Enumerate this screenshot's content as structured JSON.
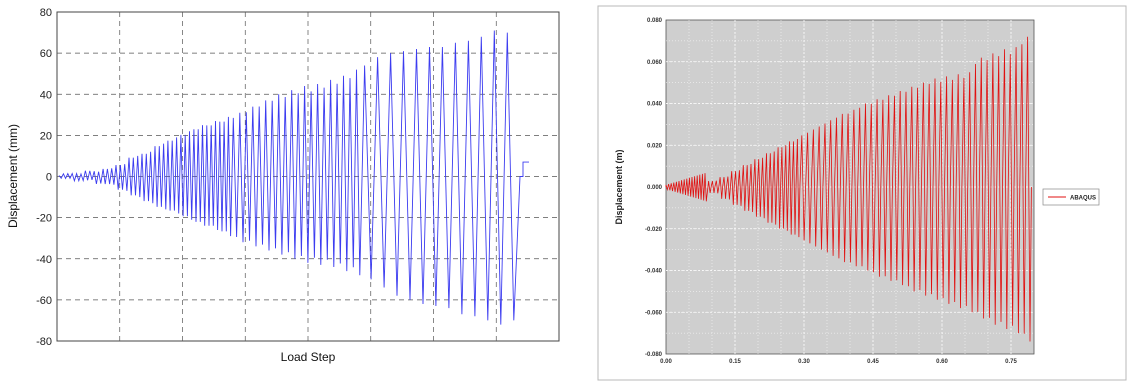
{
  "chart_data": [
    {
      "type": "line",
      "title": "",
      "xlabel": "Load Step",
      "ylabel": "Displacement (mm)",
      "ylim": [
        -80,
        80
      ],
      "y_ticks": [
        "80",
        "60",
        "40",
        "20",
        "0",
        "-20",
        "-40",
        "-60",
        "-80"
      ],
      "x_ticks": [],
      "grid": true,
      "series": [
        {
          "color": "#3c3cf0",
          "description": "cyclic displacement history with growing amplitude",
          "peaks_pos": [
            4,
            6,
            10,
            12,
            16,
            19,
            22,
            25,
            27,
            29,
            31,
            34,
            37,
            40,
            42,
            44,
            45,
            47,
            49,
            52,
            54,
            58,
            60,
            61,
            62,
            63,
            63,
            65,
            66,
            68,
            71,
            70
          ],
          "peaks_neg": [
            -4,
            -7,
            -10,
            -13,
            -16,
            -18,
            -21,
            -24,
            -26,
            -29,
            -32,
            -34,
            -36,
            -38,
            -40,
            -42,
            -43,
            -44,
            -46,
            -48,
            -50,
            -54,
            -58,
            -60,
            -62,
            -63,
            -64,
            -67,
            -68,
            -70,
            -72,
            -70
          ],
          "end_value": 7
        }
      ]
    },
    {
      "type": "line",
      "title": "",
      "xlabel": "",
      "ylabel": "Displacement (m)",
      "xlim": [
        0.0,
        0.8
      ],
      "ylim": [
        -0.08,
        0.08
      ],
      "x_ticks": [
        "0.00",
        "0.15",
        "0.30",
        "0.45",
        "0.60",
        "0.75"
      ],
      "y_ticks": [
        "0.080",
        "0.060",
        "0.040",
        "0.020",
        "0.000",
        "-0.020",
        "-0.040",
        "-0.060",
        "-0.080"
      ],
      "grid": true,
      "legend": "right",
      "series": [
        {
          "name": "ABAQUS",
          "color": "#e01010",
          "peaks_pos": [
            0.003,
            0.005,
            0.008,
            0.011,
            0.014,
            0.017,
            0.02,
            0.023,
            0.026,
            0.029,
            0.032,
            0.035,
            0.037,
            0.04,
            0.042,
            0.044,
            0.046,
            0.048,
            0.05,
            0.052,
            0.053,
            0.054,
            0.055,
            0.062,
            0.064,
            0.066,
            0.067,
            0.072
          ],
          "peaks_neg": [
            -0.003,
            -0.006,
            -0.009,
            -0.012,
            -0.015,
            -0.018,
            -0.021,
            -0.024,
            -0.027,
            -0.03,
            -0.033,
            -0.036,
            -0.038,
            -0.04,
            -0.043,
            -0.045,
            -0.047,
            -0.05,
            -0.052,
            -0.054,
            -0.056,
            -0.058,
            -0.06,
            -0.063,
            -0.066,
            -0.068,
            -0.07,
            -0.074
          ]
        }
      ]
    }
  ]
}
